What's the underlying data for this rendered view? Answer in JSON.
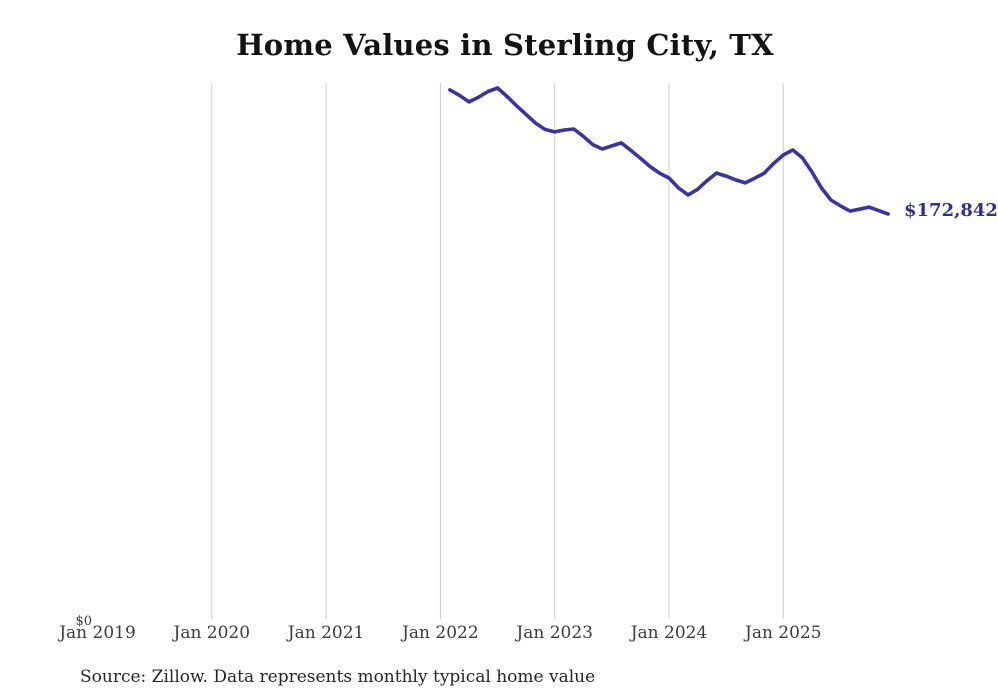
{
  "header": {
    "title": "Home Values in Sterling City, TX"
  },
  "chart": {
    "y_zero_label": "$0",
    "end_label": "$172,842",
    "x_ticks": [
      "Jan 2019",
      "Jan 2020",
      "Jan 2021",
      "Jan 2022",
      "Jan 2023",
      "Jan 2024",
      "Jan 2025"
    ],
    "gridline_years": [
      2020,
      2021,
      2022,
      2023,
      2024,
      2025
    ],
    "colors": {
      "line": "#3a34a3",
      "end_label": "#2e3191",
      "gridline": "#cccccc",
      "tick_text": "#3c3c3c"
    }
  },
  "footer": {
    "source": "Source: Zillow. Data represents monthly typical home value"
  },
  "chart_data": {
    "type": "line",
    "title": "Home Values in Sterling City, TX",
    "series_name": "Typical home value ($)",
    "x": [
      "2022-02",
      "2022-03",
      "2022-04",
      "2022-05",
      "2022-06",
      "2022-07",
      "2022-08",
      "2022-09",
      "2022-10",
      "2022-11",
      "2022-12",
      "2023-01",
      "2023-02",
      "2023-03",
      "2023-04",
      "2023-05",
      "2023-06",
      "2023-07",
      "2023-08",
      "2023-09",
      "2023-10",
      "2023-11",
      "2023-12",
      "2024-01",
      "2024-02",
      "2024-03",
      "2024-04",
      "2024-05",
      "2024-06",
      "2024-07",
      "2024-08",
      "2024-09",
      "2024-10",
      "2024-11",
      "2024-12",
      "2025-01",
      "2025-02",
      "2025-03",
      "2025-04",
      "2025-05",
      "2025-06",
      "2025-07",
      "2025-08",
      "2025-09",
      "2025-10",
      "2025-11",
      "2025-12"
    ],
    "values": [
      225800,
      223500,
      220700,
      222700,
      225100,
      226600,
      223000,
      219000,
      215300,
      211600,
      208900,
      207900,
      208700,
      209100,
      206000,
      202400,
      200600,
      201900,
      203200,
      200000,
      196600,
      193100,
      190300,
      188200,
      184000,
      181000,
      183400,
      187100,
      190300,
      189000,
      187400,
      186100,
      188100,
      190300,
      194500,
      198000,
      200200,
      196800,
      190800,
      184000,
      178800,
      176300,
      174100,
      174900,
      175800,
      174300,
      172842
    ],
    "last_value_label": "$172,842",
    "xlabel": "",
    "ylabel": "",
    "ylim": [
      0,
      228700
    ],
    "x_tick_labels": [
      "Jan 2019",
      "Jan 2020",
      "Jan 2021",
      "Jan 2022",
      "Jan 2023",
      "Jan 2024",
      "Jan 2025"
    ],
    "y_tick_labels": [
      "$0"
    ],
    "grid": "vertical-only",
    "legend": "none"
  }
}
